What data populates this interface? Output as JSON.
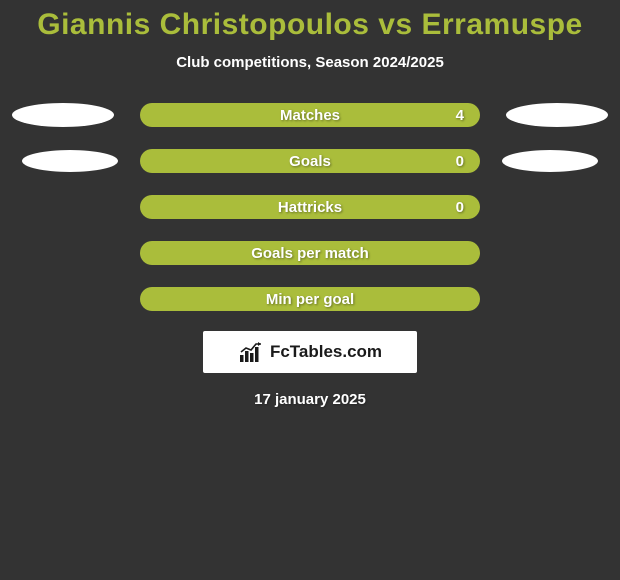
{
  "title": "Giannis Christopoulos vs Erramuspe",
  "subtitle": "Club competitions, Season 2024/2025",
  "date": "17 january 2025",
  "logo_text": "FcTables.com",
  "colors": {
    "background": "#333333",
    "accent": "#aabd3b",
    "text_light": "#ffffff",
    "logo_bg": "#ffffff",
    "logo_text": "#1a1a1a"
  },
  "stats": [
    {
      "label": "Matches",
      "value": "4",
      "show_value": true,
      "ellipse_left": true,
      "ellipse_right": true,
      "left_style": "wide",
      "right_style": "wide"
    },
    {
      "label": "Goals",
      "value": "0",
      "show_value": true,
      "ellipse_left": true,
      "ellipse_right": true,
      "left_style": "small",
      "right_style": "small"
    },
    {
      "label": "Hattricks",
      "value": "0",
      "show_value": true,
      "ellipse_left": false,
      "ellipse_right": false
    },
    {
      "label": "Goals per match",
      "value": "",
      "show_value": false,
      "ellipse_left": false,
      "ellipse_right": false
    },
    {
      "label": "Min per goal",
      "value": "",
      "show_value": false,
      "ellipse_left": false,
      "ellipse_right": false
    }
  ]
}
